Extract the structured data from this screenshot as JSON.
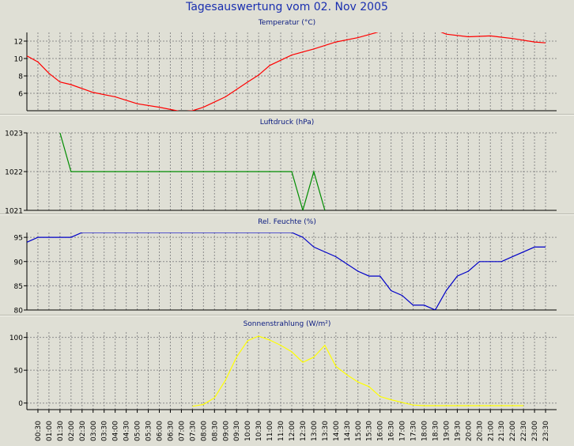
{
  "title": "Tagesauswertung vom 02. Nov 2005",
  "chart_data": [
    {
      "type": "line",
      "title": "Temperatur (°C)",
      "color": "#ff0000",
      "ylim": [
        4,
        13
      ],
      "yticks": [
        6,
        8,
        10,
        12
      ],
      "x": [
        "00:00",
        "00:30",
        "01:00",
        "01:30",
        "02:00",
        "03:00",
        "04:00",
        "05:00",
        "06:00",
        "07:00",
        "07:30",
        "08:00",
        "09:00",
        "10:00",
        "10:30",
        "11:00",
        "12:00",
        "13:00",
        "14:00",
        "15:00",
        "16:00",
        "17:00",
        "18:00",
        "18:30",
        "19:00",
        "20:00",
        "21:00",
        "22:00",
        "23:00",
        "23:30"
      ],
      "values": [
        10.3,
        9.6,
        8.3,
        7.3,
        7.0,
        6.1,
        5.6,
        4.8,
        4.4,
        3.9,
        4.0,
        4.4,
        5.6,
        7.3,
        8.1,
        9.2,
        10.4,
        11.1,
        11.9,
        12.4,
        13.1,
        13.2,
        13.4,
        13.3,
        12.8,
        12.5,
        12.6,
        12.3,
        11.9,
        11.8
      ]
    },
    {
      "type": "line",
      "title": "Luftdruck (hPa)",
      "color": "#008c00",
      "ylim": [
        1021,
        1023
      ],
      "yticks": [
        1021,
        1022,
        1023
      ],
      "x": [
        "01:30",
        "02:00",
        "12:00",
        "12:30",
        "13:00",
        "13:30"
      ],
      "values": [
        1023,
        1022,
        1022,
        1021,
        1022,
        1021
      ]
    },
    {
      "type": "line",
      "title": "Rel. Feuchte (%)",
      "color": "#0000c8",
      "ylim": [
        80,
        96
      ],
      "yticks": [
        80,
        85,
        90,
        95
      ],
      "x": [
        "00:00",
        "00:30",
        "02:00",
        "02:30",
        "12:00",
        "12:30",
        "13:00",
        "14:00",
        "15:00",
        "15:30",
        "16:00",
        "16:30",
        "17:00",
        "17:30",
        "18:00",
        "18:30",
        "19:00",
        "19:30",
        "20:00",
        "20:30",
        "21:30",
        "22:00",
        "23:00",
        "23:30"
      ],
      "values": [
        94,
        95,
        95,
        96,
        96,
        95,
        93,
        91,
        88,
        87,
        87,
        84,
        83,
        81,
        81,
        80,
        84,
        87,
        88,
        90,
        90,
        91,
        93,
        93
      ]
    },
    {
      "type": "line",
      "title": "Sonnenstrahlung (W/m²)",
      "color": "#ffff00",
      "ylim": [
        -10,
        108
      ],
      "yticks": [
        0,
        50,
        100
      ],
      "x": [
        "07:30",
        "08:00",
        "08:30",
        "09:00",
        "09:30",
        "10:00",
        "10:30",
        "11:00",
        "11:30",
        "12:00",
        "12:30",
        "13:00",
        "13:30",
        "14:00",
        "14:30",
        "15:00",
        "15:30",
        "16:00",
        "16:30",
        "17:00",
        "17:30",
        "18:00",
        "22:30"
      ],
      "values": [
        -5,
        -2,
        8,
        35,
        70,
        95,
        102,
        96,
        88,
        78,
        62,
        70,
        88,
        56,
        43,
        32,
        25,
        10,
        5,
        1,
        -3,
        -4,
        -4
      ]
    }
  ],
  "x_ticks": [
    "00:30",
    "01:00",
    "01:30",
    "02:00",
    "02:30",
    "03:00",
    "03:30",
    "04:00",
    "04:30",
    "05:00",
    "05:30",
    "06:00",
    "06:30",
    "07:00",
    "07:30",
    "08:00",
    "08:30",
    "09:00",
    "09:30",
    "10:00",
    "10:30",
    "11:00",
    "11:30",
    "12:00",
    "12:30",
    "13:00",
    "13:30",
    "14:00",
    "14:30",
    "15:00",
    "15:30",
    "16:00",
    "16:30",
    "17:00",
    "17:30",
    "18:00",
    "18:30",
    "19:00",
    "19:30",
    "20:00",
    "20:30",
    "21:00",
    "21:30",
    "22:00",
    "22:30",
    "23:00",
    "23:30"
  ]
}
